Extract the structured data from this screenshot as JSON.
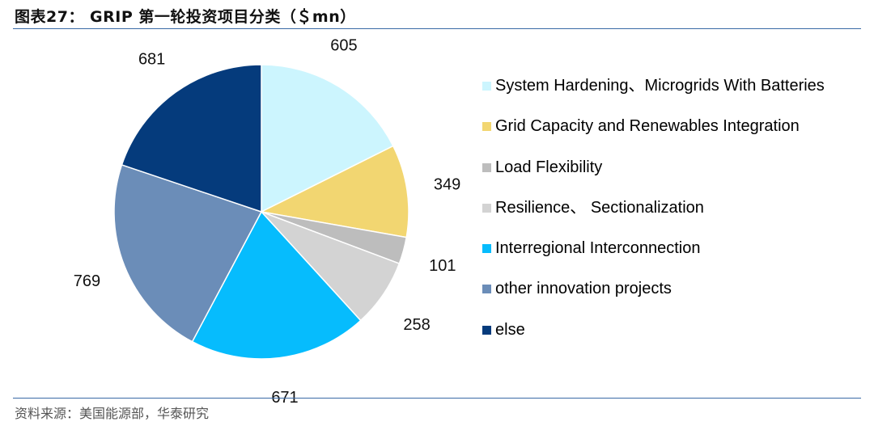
{
  "figure": {
    "title": "图表27：  GRIP 第一轮投资项目分类（＄mn）",
    "source": "资料来源：美国能源部，华泰研究"
  },
  "chart_data": {
    "type": "pie",
    "title": "",
    "start": "12 o'clock",
    "direction": "clockwise",
    "legend_position": "right",
    "slices": [
      {
        "name": "System Hardening、Microgrids With Batteries",
        "value": 605,
        "label": "605",
        "color": "#ccf5fe"
      },
      {
        "name": "Grid Capacity and Renewables Integration",
        "value": 349,
        "label": "349",
        "color": "#f2d671"
      },
      {
        "name": "Load Flexibility",
        "value": 101,
        "label": "101",
        "color": "#bdbdbd"
      },
      {
        "name": "Resilience、 Sectionalization",
        "value": 258,
        "label": "258",
        "color": "#d3d3d3"
      },
      {
        "name": "Interregional Interconnection",
        "value": 671,
        "label": "671",
        "color": "#06bcfd"
      },
      {
        "name": "other innovation projects",
        "value": 769,
        "label": "769",
        "color": "#6b8db8"
      },
      {
        "name": "else",
        "value": 681,
        "label": "681",
        "color": "#053b7c"
      }
    ]
  }
}
